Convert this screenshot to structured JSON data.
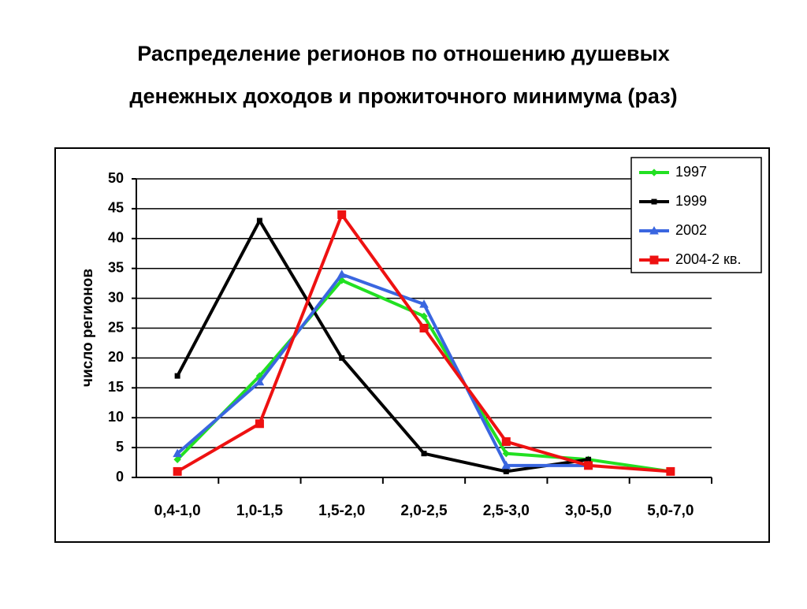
{
  "chart_data": {
    "type": "line",
    "title": "Распределение регионов по отношению душевых денежных доходов и прожиточного минимума (раз)",
    "title_lines": [
      "Распределение регионов по отношению душевых",
      "денежных доходов и прожиточного минимума (раз)"
    ],
    "y_label": "число регионов",
    "categories": [
      "0,4-1,0",
      "1,0-1,5",
      "1,5-2,0",
      "2,0-2,5",
      "2,5-3,0",
      "3,0-5,0",
      "5,0-7,0"
    ],
    "series": [
      {
        "name": "1997",
        "color": "#22e022",
        "marker": "diamond",
        "values": [
          3,
          17,
          33,
          27,
          4,
          3,
          1
        ]
      },
      {
        "name": "1999",
        "color": "#000000",
        "marker": "square",
        "values": [
          17,
          43,
          20,
          4,
          1,
          3,
          null
        ]
      },
      {
        "name": "2002",
        "color": "#3a66e0",
        "marker": "triangle",
        "values": [
          4,
          16,
          34,
          29,
          2,
          2,
          null
        ]
      },
      {
        "name": "2004-2 кв.",
        "color": "#ee1111",
        "marker": "bigsquare",
        "values": [
          1,
          9,
          44,
          25,
          6,
          2,
          1
        ]
      }
    ],
    "ylim": [
      0,
      50
    ],
    "yticks": [
      0,
      5,
      10,
      15,
      20,
      25,
      30,
      35,
      40,
      45,
      50
    ],
    "grid": true,
    "legend": "top-right"
  }
}
